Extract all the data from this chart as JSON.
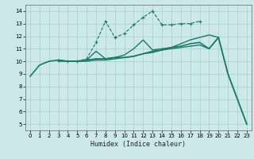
{
  "title": "",
  "xlabel": "Humidex (Indice chaleur)",
  "background_color": "#cce8e8",
  "grid_color": "#aad4d4",
  "line_color": "#1a7a6a",
  "xlim": [
    -0.5,
    23.5
  ],
  "ylim": [
    4.5,
    14.5
  ],
  "xticks": [
    0,
    1,
    2,
    3,
    4,
    5,
    6,
    7,
    8,
    9,
    10,
    11,
    12,
    13,
    14,
    15,
    16,
    17,
    18,
    19,
    20,
    21,
    22,
    23
  ],
  "yticks": [
    5,
    6,
    7,
    8,
    9,
    10,
    11,
    12,
    13,
    14
  ],
  "line1_x": [
    0,
    1,
    2,
    3,
    4,
    5,
    6,
    7,
    8,
    9,
    10,
    11,
    12,
    13,
    14,
    15,
    16,
    17,
    18,
    19,
    20,
    21,
    22,
    23
  ],
  "line1_y": [
    8.8,
    9.7,
    10.0,
    10.1,
    10.0,
    10.0,
    10.1,
    10.2,
    10.2,
    10.3,
    10.3,
    10.4,
    10.6,
    10.8,
    10.9,
    11.1,
    11.2,
    11.4,
    11.5,
    11.0,
    11.9,
    9.0,
    7.0,
    5.0
  ],
  "line2_x": [
    3,
    4,
    5,
    6,
    7,
    8,
    9,
    10,
    11,
    12,
    13,
    14,
    15,
    16,
    17,
    18,
    19,
    20
  ],
  "line2_y": [
    10.1,
    10.0,
    10.0,
    10.1,
    10.8,
    10.2,
    10.3,
    10.5,
    11.0,
    11.7,
    10.9,
    11.0,
    11.1,
    11.4,
    11.7,
    11.9,
    12.1,
    11.9
  ],
  "line3_x": [
    3,
    4,
    5,
    6,
    7,
    8,
    9,
    10,
    11,
    12,
    13,
    14,
    15,
    16,
    17,
    18
  ],
  "line3_y": [
    10.1,
    10.0,
    10.0,
    10.2,
    11.5,
    13.2,
    11.9,
    12.2,
    12.9,
    13.5,
    14.0,
    12.9,
    12.9,
    13.0,
    13.0,
    13.2
  ],
  "line4_x": [
    3,
    4,
    5,
    6,
    7,
    8,
    9,
    10,
    11,
    12,
    13,
    14,
    15,
    16,
    17,
    18,
    19,
    20,
    21,
    22,
    23
  ],
  "line4_y": [
    10.0,
    10.0,
    10.0,
    10.0,
    10.1,
    10.1,
    10.2,
    10.3,
    10.4,
    10.6,
    10.7,
    10.9,
    11.0,
    11.1,
    11.2,
    11.3,
    11.0,
    11.9,
    9.0,
    7.0,
    5.0
  ]
}
